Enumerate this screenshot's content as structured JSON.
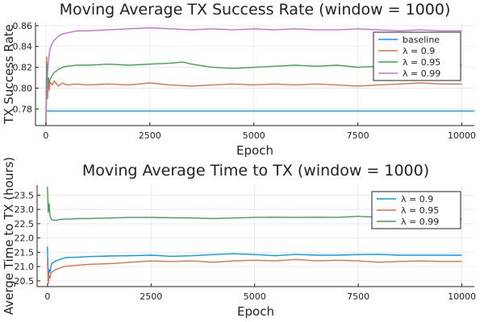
{
  "chart_data": [
    {
      "type": "line",
      "title": "Moving Average TX Success Rate (window = 1000)",
      "xlabel": "Epoch",
      "ylabel": "TX Success Rate",
      "xlim": [
        -250,
        10300
      ],
      "ylim": [
        0.764,
        0.863
      ],
      "xticks": [
        0,
        2500,
        5000,
        7500,
        10000
      ],
      "xtick_labels": [
        "0",
        "2500",
        "5000",
        "7500",
        "10000"
      ],
      "yticks": [
        0.78,
        0.8,
        0.82,
        0.84,
        0.86
      ],
      "ytick_labels": [
        "0.78",
        "0.80",
        "0.82",
        "0.84",
        "0.86"
      ],
      "grid": true,
      "legend": "top-right",
      "series": [
        {
          "name": "baseline",
          "color": "#009AFA",
          "x": [
            0,
            10300
          ],
          "y": [
            0.778,
            0.778
          ]
        },
        {
          "name": "λ = 0.9",
          "color": "#E36F47",
          "x": [
            0,
            20,
            40,
            60,
            80,
            100,
            150,
            200,
            300,
            400,
            500,
            750,
            1000,
            1500,
            2000,
            2500,
            3000,
            3500,
            4000,
            4500,
            5000,
            5500,
            6000,
            6500,
            7000,
            7500,
            8000,
            8500,
            9000,
            9500,
            10000
          ],
          "y": [
            0.765,
            0.83,
            0.79,
            0.81,
            0.798,
            0.806,
            0.803,
            0.807,
            0.802,
            0.805,
            0.803,
            0.804,
            0.803,
            0.804,
            0.803,
            0.805,
            0.803,
            0.802,
            0.803,
            0.804,
            0.803,
            0.804,
            0.803,
            0.804,
            0.803,
            0.802,
            0.803,
            0.804,
            0.805,
            0.804,
            0.804
          ]
        },
        {
          "name": "λ = 0.95",
          "color": "#3EA44E",
          "x": [
            0,
            20,
            40,
            60,
            80,
            100,
            150,
            200,
            300,
            400,
            500,
            750,
            1000,
            1500,
            2000,
            2500,
            3000,
            3300,
            3500,
            4000,
            4500,
            5000,
            5500,
            6000,
            6500,
            7000,
            7500,
            8000,
            8500,
            9000,
            9500,
            10000
          ],
          "y": [
            0.765,
            0.825,
            0.8,
            0.81,
            0.805,
            0.808,
            0.812,
            0.815,
            0.818,
            0.82,
            0.821,
            0.822,
            0.822,
            0.823,
            0.822,
            0.823,
            0.824,
            0.825,
            0.823,
            0.82,
            0.819,
            0.82,
            0.821,
            0.822,
            0.821,
            0.822,
            0.82,
            0.821,
            0.82,
            0.822,
            0.821,
            0.822
          ]
        },
        {
          "name": "λ = 0.99",
          "color": "#C271D2",
          "x": [
            0,
            20,
            40,
            60,
            80,
            100,
            150,
            200,
            300,
            400,
            500,
            750,
            1000,
            1500,
            2000,
            2500,
            3000,
            3500,
            4000,
            4500,
            5000,
            5500,
            6000,
            6500,
            7000,
            7500,
            8000,
            8500,
            9000,
            9500,
            10000
          ],
          "y": [
            0.765,
            0.795,
            0.815,
            0.825,
            0.832,
            0.838,
            0.843,
            0.846,
            0.85,
            0.852,
            0.853,
            0.855,
            0.855,
            0.856,
            0.857,
            0.858,
            0.857,
            0.856,
            0.857,
            0.856,
            0.857,
            0.856,
            0.857,
            0.856,
            0.856,
            0.857,
            0.856,
            0.855,
            0.856,
            0.855,
            0.855
          ]
        }
      ]
    },
    {
      "type": "line",
      "title": "Moving Average Time to TX (window = 1000)",
      "xlabel": "Epoch",
      "ylabel": "Averge Time to TX (hours)",
      "xlim": [
        -250,
        10300
      ],
      "ylim": [
        20.3,
        23.85
      ],
      "xticks": [
        0,
        2500,
        5000,
        7500,
        10000
      ],
      "xtick_labels": [
        "0",
        "2500",
        "5000",
        "7500",
        "10000"
      ],
      "yticks": [
        20.5,
        21.0,
        21.5,
        22.0,
        22.5,
        23.0,
        23.5
      ],
      "ytick_labels": [
        "20.5",
        "21.0",
        "21.5",
        "22.0",
        "22.5",
        "23.0",
        "23.5"
      ],
      "grid": true,
      "legend": "top-right",
      "series": [
        {
          "name": "λ = 0.9",
          "color": "#009AFA",
          "x": [
            0,
            20,
            40,
            60,
            80,
            100,
            150,
            200,
            300,
            400,
            500,
            750,
            1000,
            1500,
            2000,
            2500,
            3000,
            3500,
            4000,
            4500,
            5000,
            5500,
            6000,
            6500,
            7000,
            7500,
            8000,
            8500,
            9000,
            9500,
            10000
          ],
          "y": [
            21.7,
            20.6,
            20.9,
            20.8,
            21.0,
            21.1,
            21.15,
            21.2,
            21.25,
            21.3,
            21.32,
            21.33,
            21.35,
            21.37,
            21.38,
            21.4,
            21.36,
            21.38,
            21.42,
            21.45,
            21.42,
            21.38,
            21.43,
            21.4,
            21.4,
            21.42,
            21.43,
            21.4,
            21.4,
            21.4,
            21.4
          ]
        },
        {
          "name": "λ = 0.95",
          "color": "#E36F47",
          "x": [
            0,
            20,
            40,
            60,
            80,
            100,
            150,
            200,
            300,
            400,
            500,
            750,
            1000,
            1500,
            2000,
            2500,
            3000,
            3500,
            4000,
            4500,
            5000,
            5500,
            6000,
            6500,
            7000,
            7500,
            8000,
            8500,
            9000,
            9500,
            10000
          ],
          "y": [
            21.2,
            20.4,
            20.7,
            20.6,
            20.75,
            20.8,
            20.85,
            20.9,
            20.95,
            21.0,
            21.02,
            21.05,
            21.08,
            21.1,
            21.15,
            21.2,
            21.18,
            21.2,
            21.15,
            21.2,
            21.22,
            21.2,
            21.25,
            21.2,
            21.22,
            21.2,
            21.15,
            21.18,
            21.2,
            21.18,
            21.18
          ]
        },
        {
          "name": "λ = 0.99",
          "color": "#3EA44E",
          "x": [
            0,
            20,
            40,
            60,
            80,
            100,
            150,
            200,
            300,
            400,
            500,
            750,
            1000,
            1500,
            2000,
            2500,
            3000,
            3500,
            4000,
            4500,
            5000,
            5500,
            6000,
            6500,
            7000,
            7500,
            8000,
            8500,
            9000,
            9500,
            10000
          ],
          "y": [
            23.8,
            22.9,
            23.2,
            22.8,
            22.7,
            22.65,
            22.62,
            22.62,
            22.65,
            22.66,
            22.66,
            22.68,
            22.68,
            22.7,
            22.72,
            22.72,
            22.71,
            22.7,
            22.68,
            22.7,
            22.72,
            22.73,
            22.72,
            22.73,
            22.72,
            22.76,
            22.72,
            22.7,
            22.68,
            22.66,
            22.65
          ]
        }
      ]
    }
  ]
}
